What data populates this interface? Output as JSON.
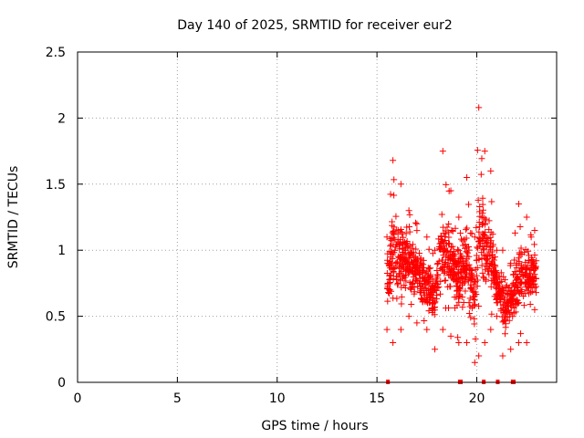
{
  "chart_data": {
    "type": "scatter",
    "title": "Day 140 of 2025, SRMTID for receiver eur2",
    "xlabel": "GPS time / hours",
    "ylabel": "SRMTID / TECUs",
    "xlim": [
      0,
      24
    ],
    "ylim": [
      0,
      2.5
    ],
    "xticks": [
      0,
      5,
      10,
      15,
      20
    ],
    "yticks": [
      0,
      0.5,
      1,
      1.5,
      2,
      2.5
    ],
    "xtick_labels": [
      "0",
      "5",
      "10",
      "15",
      "20"
    ],
    "ytick_labels": [
      "0",
      "0.5",
      "1",
      "1.5",
      "2",
      "2.5"
    ],
    "grid": true,
    "marker": "+",
    "color": "#ff0000",
    "data_range_hours": [
      15.5,
      23.0
    ],
    "zero_markers_x": [
      15.55,
      19.15,
      19.2,
      20.35,
      21.05,
      21.8,
      21.85
    ],
    "envelope": [
      {
        "x": 15.5,
        "low": 0.4,
        "high": 1.1
      },
      {
        "x": 15.8,
        "low": 0.3,
        "high": 1.68
      },
      {
        "x": 16.2,
        "low": 0.4,
        "high": 1.5
      },
      {
        "x": 16.6,
        "low": 0.5,
        "high": 1.3
      },
      {
        "x": 17.0,
        "low": 0.45,
        "high": 1.2
      },
      {
        "x": 17.5,
        "low": 0.4,
        "high": 1.1
      },
      {
        "x": 17.9,
        "low": 0.25,
        "high": 1.0
      },
      {
        "x": 18.3,
        "low": 0.4,
        "high": 1.75
      },
      {
        "x": 18.7,
        "low": 0.35,
        "high": 1.45
      },
      {
        "x": 19.1,
        "low": 0.3,
        "high": 1.25
      },
      {
        "x": 19.5,
        "low": 0.3,
        "high": 1.55
      },
      {
        "x": 19.9,
        "low": 0.15,
        "high": 1.1
      },
      {
        "x": 20.1,
        "low": 0.2,
        "high": 2.08
      },
      {
        "x": 20.4,
        "low": 0.3,
        "high": 1.75
      },
      {
        "x": 20.7,
        "low": 0.4,
        "high": 1.6
      },
      {
        "x": 21.0,
        "low": 0.5,
        "high": 1.0
      },
      {
        "x": 21.3,
        "low": 0.2,
        "high": 1.0
      },
      {
        "x": 21.7,
        "low": 0.25,
        "high": 0.9
      },
      {
        "x": 22.1,
        "low": 0.3,
        "high": 1.35
      },
      {
        "x": 22.5,
        "low": 0.3,
        "high": 1.25
      },
      {
        "x": 22.9,
        "low": 0.55,
        "high": 1.15
      }
    ],
    "point_count": 1100
  }
}
